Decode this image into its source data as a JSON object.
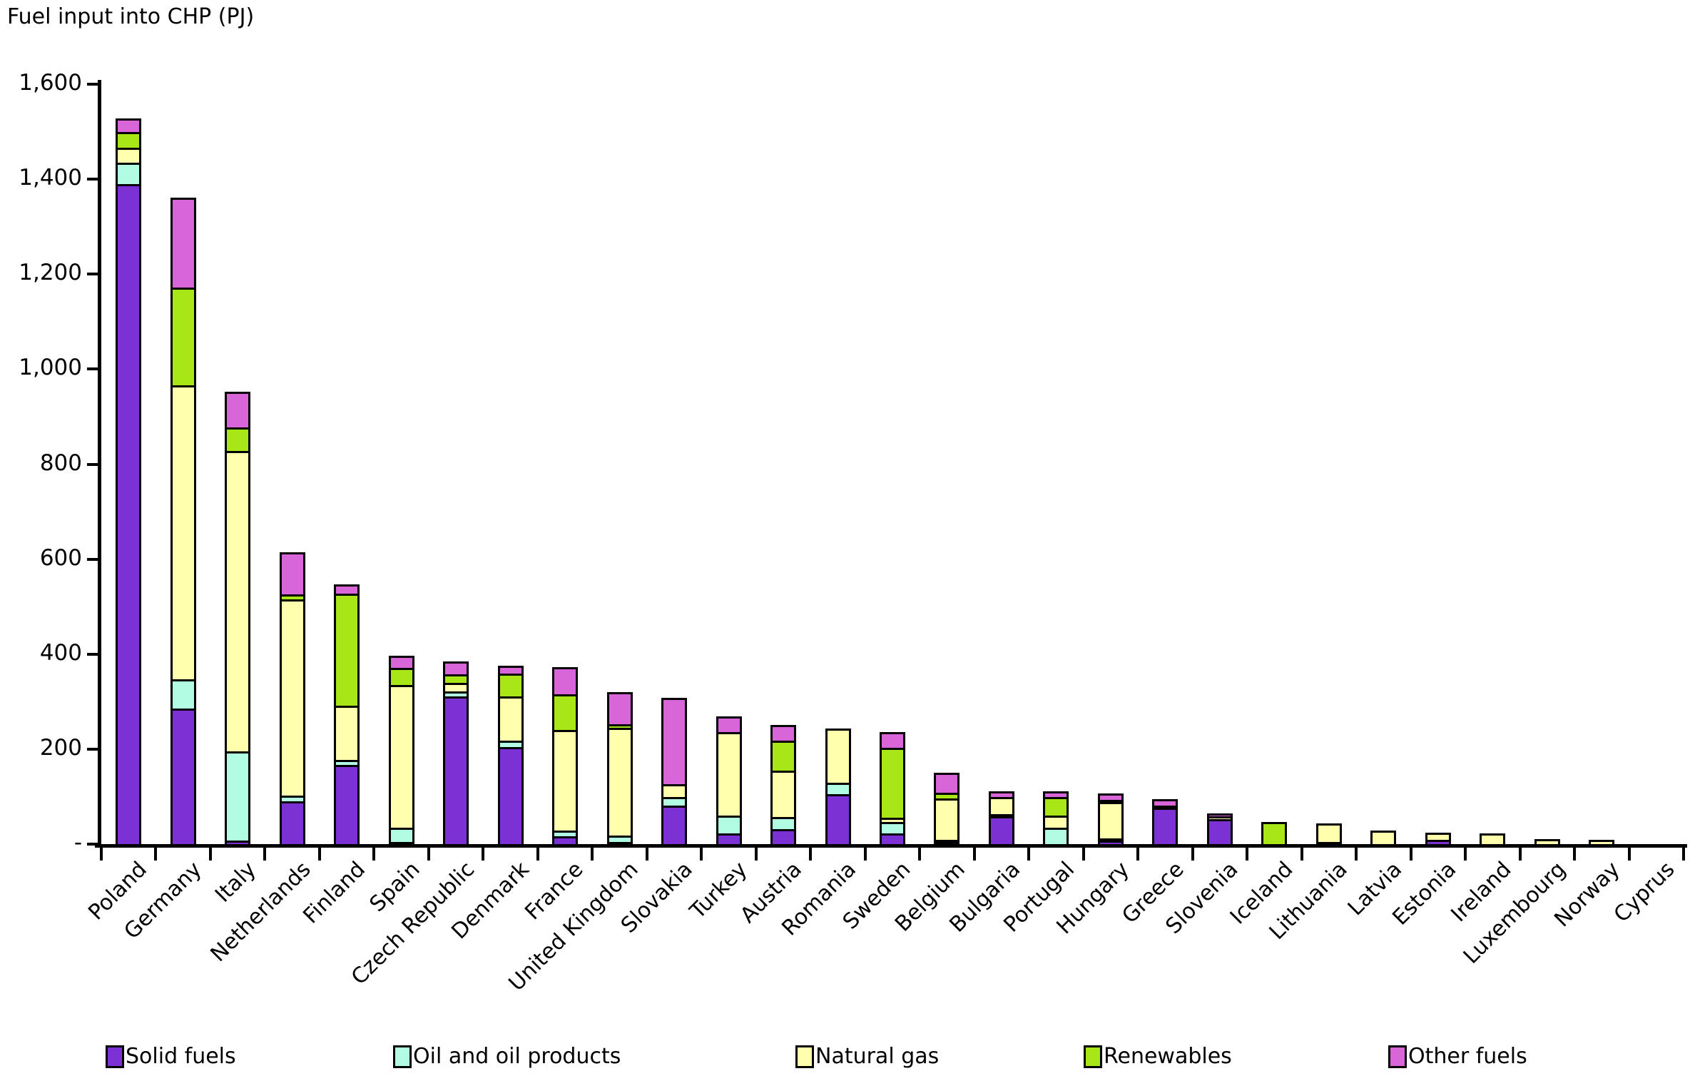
{
  "title": "Fuel input into CHP (PJ)",
  "chart_data": {
    "type": "bar",
    "stacked": true,
    "title": "Fuel input into CHP (PJ)",
    "xlabel": "",
    "ylabel": "Fuel input into CHP (PJ)",
    "ylim": [
      0,
      1600
    ],
    "grid": false,
    "legend_position": "bottom",
    "yticks": {
      "values": [
        0,
        200,
        400,
        600,
        800,
        1000,
        1200,
        1400,
        1600
      ],
      "labels": [
        "-",
        "200",
        "400",
        "600",
        "800",
        "1,000",
        "1,200",
        "1,400",
        "1,600"
      ]
    },
    "categories": [
      "Poland",
      "Germany",
      "Italy",
      "Netherlands",
      "Finland",
      "Spain",
      "Czech Republic",
      "Denmark",
      "France",
      "United Kingdom",
      "Slovakia",
      "Turkey",
      "Austria",
      "Romania",
      "Sweden",
      "Belgium",
      "Bulgaria",
      "Portugal",
      "Hungary",
      "Greece",
      "Slovenia",
      "Iceland",
      "Lithuania",
      "Latvia",
      "Estonia",
      "Ireland",
      "Luxembourg",
      "Norway",
      "Cyprus"
    ],
    "series": [
      {
        "name": "Solid fuels",
        "color": "#7c31d4",
        "values": [
          1390,
          285,
          7,
          90,
          167,
          5,
          311,
          204,
          17,
          5,
          81,
          23,
          32,
          105,
          23,
          3,
          60,
          0,
          7,
          77,
          53,
          0,
          0,
          0,
          9,
          0,
          0,
          0,
          0
        ]
      },
      {
        "name": "Oil and oil products",
        "color": "#b3fce4",
        "values": [
          45,
          62,
          188,
          12,
          10,
          30,
          10,
          14,
          12,
          13,
          18,
          37,
          25,
          24,
          24,
          5,
          3,
          35,
          2,
          0,
          0,
          0,
          2,
          0,
          0,
          0,
          0,
          0,
          0
        ]
      },
      {
        "name": "Natural gas",
        "color": "#ffffad",
        "values": [
          32,
          619,
          633,
          413,
          114,
          300,
          18,
          93,
          211,
          227,
          27,
          176,
          98,
          110,
          9,
          88,
          36,
          25,
          81,
          4,
          5,
          0,
          37,
          24,
          11,
          18,
          6,
          5,
          0
        ]
      },
      {
        "name": "Renewables",
        "color": "#a9e617",
        "values": [
          33,
          206,
          49,
          11,
          236,
          36,
          18,
          48,
          76,
          7,
          0,
          0,
          63,
          0,
          147,
          11,
          0,
          39,
          3,
          0,
          0,
          42,
          0,
          0,
          0,
          0,
          0,
          0,
          0
        ]
      },
      {
        "name": "Other fuels",
        "color": "#d966d9",
        "values": [
          23,
          185,
          71,
          84,
          16,
          21,
          23,
          12,
          52,
          64,
          178,
          28,
          28,
          0,
          28,
          39,
          8,
          7,
          9,
          9,
          2,
          0,
          0,
          0,
          0,
          0,
          0,
          0,
          0
        ]
      }
    ]
  }
}
